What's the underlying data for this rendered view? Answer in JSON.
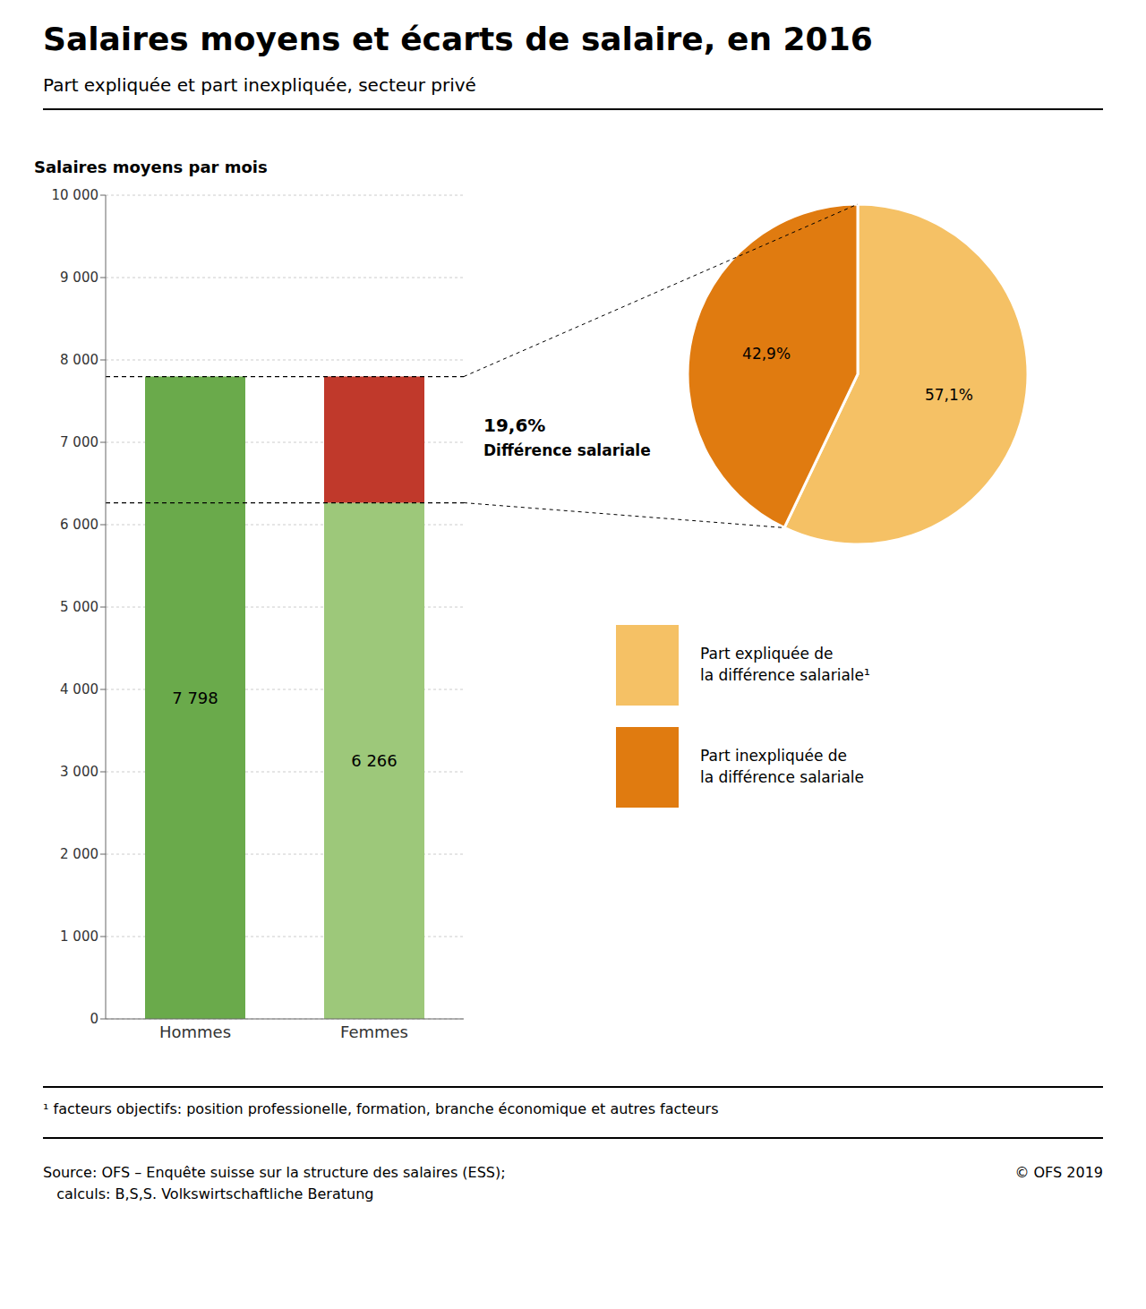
{
  "title": "Salaires moyens et écarts de salaire, en 2016",
  "subtitle": "Part expliquée et part inexpliquée, secteur privé",
  "chart_data": [
    {
      "type": "bar",
      "title": "Salaires moyens par mois",
      "categories": [
        "Hommes",
        "Femmes"
      ],
      "stacked": true,
      "grid": true,
      "ylim": [
        0,
        10000
      ],
      "yticks": [
        0,
        {
          "value": 1000,
          "label": "1 000"
        },
        {
          "value": 2000,
          "label": "2 000"
        },
        {
          "value": 3000,
          "label": "3 000"
        },
        {
          "value": 4000,
          "label": "4 000"
        },
        {
          "value": 5000,
          "label": "5 000"
        },
        {
          "value": 6000,
          "label": "6 000"
        },
        {
          "value": 7000,
          "label": "7 000"
        },
        {
          "value": 8000,
          "label": "8 000"
        },
        {
          "value": 9000,
          "label": "9 000"
        },
        {
          "value": 10000,
          "label": "10 000"
        }
      ],
      "series": [
        {
          "colors": [
            "#6aaa4b",
            "#9dc87a"
          ],
          "values": [
            7798,
            6266
          ],
          "data_labels": true,
          "value_labels": [
            "7 798",
            "6 266"
          ]
        },
        {
          "color": "#c0392b",
          "values": [
            null,
            1532
          ]
        }
      ]
    },
    {
      "type": "pie",
      "categories": [
        "Part expliquée de\nla différence salariale¹",
        "Part inexpliquée de\nla différence salariale"
      ],
      "values": [
        57.1,
        42.9
      ],
      "colors": [
        "#f5c165",
        "#e07b10"
      ],
      "data_labels": true,
      "value_labels": [
        "57,1%",
        "42,9%"
      ],
      "legend": "bottom"
    }
  ],
  "annotations": [
    "19,6%",
    "Différence salariale"
  ],
  "footnote": "¹  facteurs objectifs: position professionelle, formation, branche économique et autres facteurs",
  "source": "Source: OFS – Enquête suisse sur la structure des salaires (ESS);\n   calculs: B,S,S. Volkswirtschaftliche Beratung",
  "copyright": "© OFS 2019"
}
